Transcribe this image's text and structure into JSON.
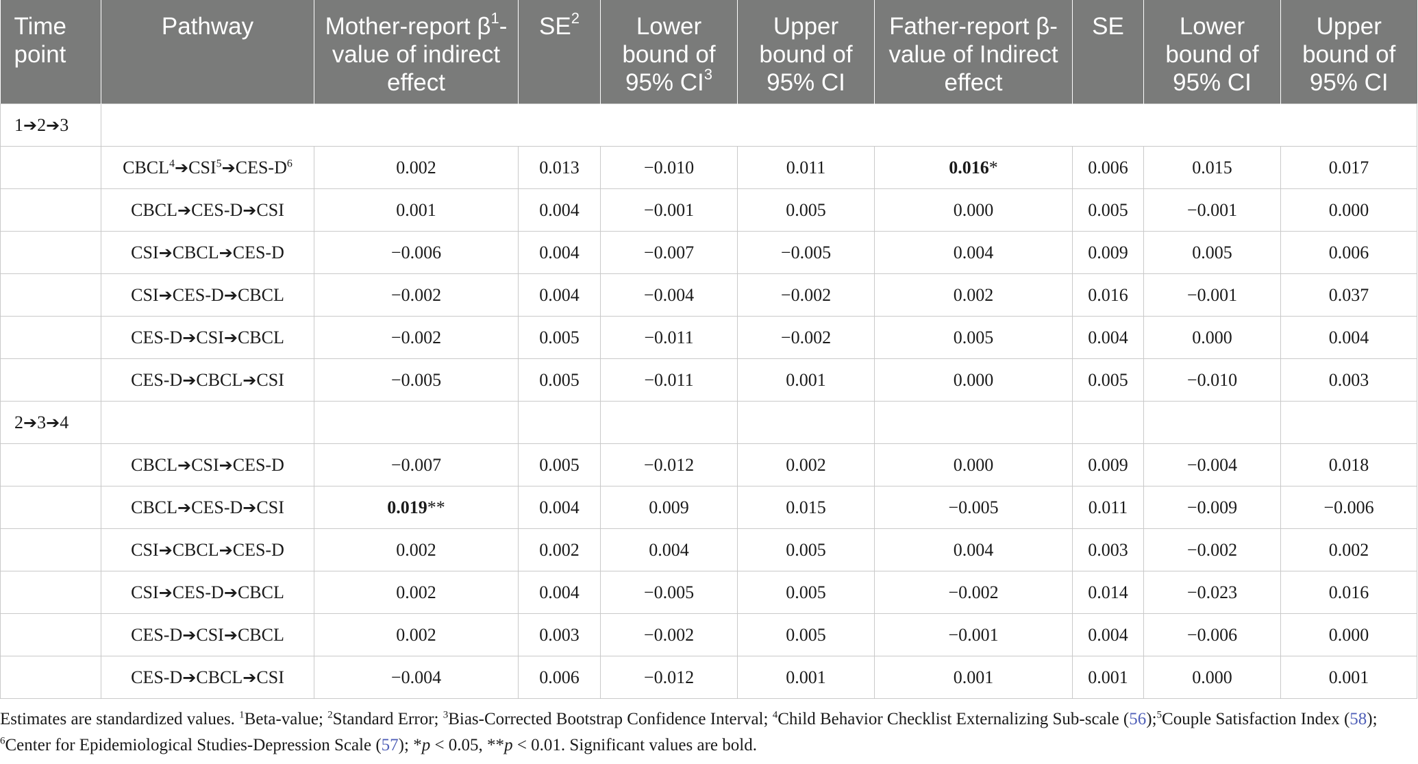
{
  "header": {
    "time_point": "Time point",
    "pathway": "Pathway",
    "mother_beta": {
      "pre": "Mother-report β",
      "sup": "1",
      "post": "-value of indirect effect"
    },
    "se_mother": {
      "text": "SE",
      "sup": "2"
    },
    "lower_mother": {
      "text": "Lower bound of 95% CI",
      "sup": "3"
    },
    "upper_mother": "Upper bound of 95% CI",
    "father_beta": "Father-report β-value of Indirect effect",
    "se_father": "SE",
    "lower_father": "Lower bound of 95% CI",
    "upper_father": "Upper bound of 95% CI"
  },
  "groups": [
    {
      "label": "1➔2➔3",
      "rows": [
        {
          "pathway": "CBCL4➔CSI5➔CES-D6",
          "mother_beta": "0.002",
          "se_m": "0.013",
          "lower_m": "−0.010",
          "upper_m": "0.011",
          "father_beta": "0.016*",
          "se_f": "0.006",
          "lower_f": "0.015",
          "upper_f": "0.017"
        },
        {
          "pathway": "CBCL➔CES-D➔CSI",
          "mother_beta": "0.001",
          "se_m": "0.004",
          "lower_m": "−0.001",
          "upper_m": "0.005",
          "father_beta": "0.000",
          "se_f": "0.005",
          "lower_f": "−0.001",
          "upper_f": "0.000"
        },
        {
          "pathway": "CSI➔CBCL➔CES-D",
          "mother_beta": "−0.006",
          "se_m": "0.004",
          "lower_m": "−0.007",
          "upper_m": "−0.005",
          "father_beta": "0.004",
          "se_f": "0.009",
          "lower_f": "0.005",
          "upper_f": "0.006"
        },
        {
          "pathway": "CSI➔CES-D➔CBCL",
          "mother_beta": "−0.002",
          "se_m": "0.004",
          "lower_m": "−0.004",
          "upper_m": "−0.002",
          "father_beta": "0.002",
          "se_f": "0.016",
          "lower_f": "−0.001",
          "upper_f": "0.037"
        },
        {
          "pathway": "CES-D➔CSI➔CBCL",
          "mother_beta": "−0.002",
          "se_m": "0.005",
          "lower_m": "−0.011",
          "upper_m": "−0.002",
          "father_beta": "0.005",
          "se_f": "0.004",
          "lower_f": "0.000",
          "upper_f": "0.004"
        },
        {
          "pathway": "CES-D➔CBCL➔CSI",
          "mother_beta": "−0.005",
          "se_m": "0.005",
          "lower_m": "−0.011",
          "upper_m": "0.001",
          "father_beta": "0.000",
          "se_f": "0.005",
          "lower_f": "−0.010",
          "upper_f": "0.003"
        }
      ]
    },
    {
      "label": "2➔3➔4",
      "rows": [
        {
          "pathway": "CBCL➔CSI➔CES-D",
          "mother_beta": "−0.007",
          "se_m": "0.005",
          "lower_m": "−0.012",
          "upper_m": "0.002",
          "father_beta": "0.000",
          "se_f": "0.009",
          "lower_f": "−0.004",
          "upper_f": "0.018"
        },
        {
          "pathway": "CBCL➔CES-D➔CSI",
          "mother_beta": "0.019**",
          "se_m": "0.004",
          "lower_m": "0.009",
          "upper_m": "0.015",
          "father_beta": "−0.005",
          "se_f": "0.011",
          "lower_f": "−0.009",
          "upper_f": "−0.006"
        },
        {
          "pathway": "CSI➔CBCL➔CES-D",
          "mother_beta": "0.002",
          "se_m": "0.002",
          "lower_m": "0.004",
          "upper_m": "0.005",
          "father_beta": "0.004",
          "se_f": "0.003",
          "lower_f": "−0.002",
          "upper_f": "0.002"
        },
        {
          "pathway": "CSI➔CES-D➔CBCL",
          "mother_beta": "0.002",
          "se_m": "0.004",
          "lower_m": "−0.005",
          "upper_m": "0.005",
          "father_beta": "−0.002",
          "se_f": "0.014",
          "lower_f": "−0.023",
          "upper_f": "0.016"
        },
        {
          "pathway": "CES-D➔CSI➔CBCL",
          "mother_beta": "0.002",
          "se_m": "0.003",
          "lower_m": "−0.002",
          "upper_m": "0.005",
          "father_beta": "−0.001",
          "se_f": "0.004",
          "lower_f": "−0.006",
          "upper_f": "0.000"
        },
        {
          "pathway": "CES-D➔CBCL➔CSI",
          "mother_beta": "−0.004",
          "se_m": "0.006",
          "lower_m": "−0.012",
          "upper_m": "0.001",
          "father_beta": "0.001",
          "se_f": "0.001",
          "lower_f": "0.000",
          "upper_f": "0.001"
        }
      ]
    }
  ],
  "footnote": {
    "lead": "Estimates are standardized values. ",
    "n1": "1",
    "t1": "Beta-value; ",
    "n2": "2",
    "t2": "Standard Error; ",
    "n3": "3",
    "t3": "Bias-Corrected Bootstrap Confidence Interval; ",
    "n4": "4",
    "t4": "Child Behavior Checklist Externalizing Sub-scale (",
    "r56": "56",
    "t4b": ");",
    "n5": "5",
    "t5": "Couple Satisfaction Index (",
    "r58": "58",
    "t5b": "); ",
    "n6": "6",
    "t6": "Center for Epidemiological Studies-Depression Scale (",
    "r57": "57",
    "t6b": "); *",
    "p1": "p",
    "t7": " < 0.05, **",
    "p2": "p",
    "t8": " < 0.01. Significant values are bold."
  }
}
